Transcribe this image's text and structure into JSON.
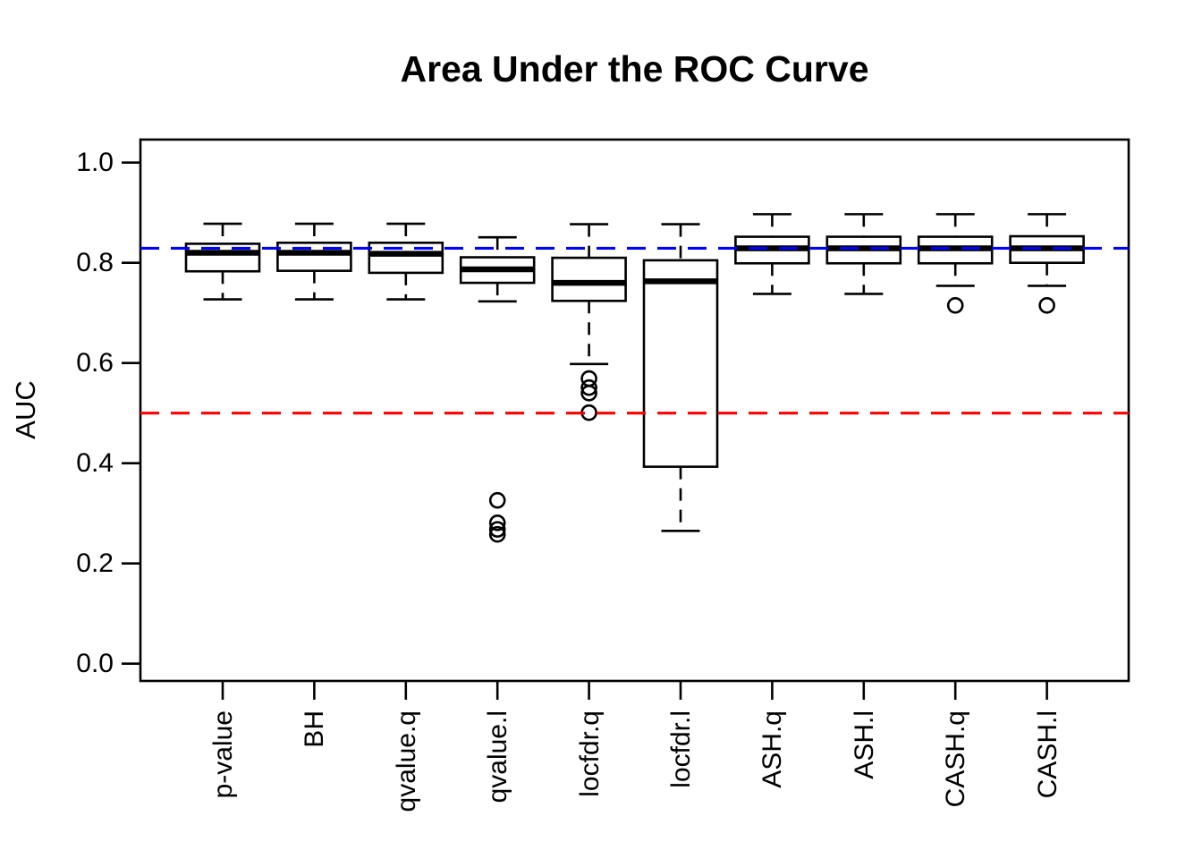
{
  "title": "Area Under the ROC Curve",
  "chart_data": {
    "type": "boxplot",
    "title": "Area Under the ROC Curve",
    "xlabel": "",
    "ylabel": "AUC",
    "ylim": [
      0.0,
      1.0
    ],
    "grid": false,
    "background": "#ffffff",
    "box_color": "#000000",
    "ytick_labels": [
      "1.0",
      "0.8",
      "0.6",
      "0.4",
      "0.2",
      "0.0"
    ],
    "yticks": [
      1.0,
      0.8,
      0.6,
      0.4,
      0.2,
      0.0
    ],
    "categories": [
      "p-value",
      "BH",
      "qvalue.q",
      "qvalue.l",
      "locfdr.q",
      "locfdr.l",
      "ASH.q",
      "ASH.l",
      "CASH.q",
      "CASH.l"
    ],
    "boxes": [
      {
        "label": "p-value",
        "whisker_low": 0.727,
        "q1": 0.783,
        "median": 0.82,
        "q3": 0.838,
        "whisker_high": 0.878,
        "outliers": []
      },
      {
        "label": "BH",
        "whisker_low": 0.727,
        "q1": 0.784,
        "median": 0.82,
        "q3": 0.84,
        "whisker_high": 0.878,
        "outliers": []
      },
      {
        "label": "qvalue.q",
        "whisker_low": 0.727,
        "q1": 0.78,
        "median": 0.818,
        "q3": 0.84,
        "whisker_high": 0.878,
        "outliers": []
      },
      {
        "label": "qvalue.l",
        "whisker_low": 0.723,
        "q1": 0.76,
        "median": 0.787,
        "q3": 0.811,
        "whisker_high": 0.851,
        "outliers": [
          0.326,
          0.281,
          0.268,
          0.258
        ]
      },
      {
        "label": "locfdr.q",
        "whisker_low": 0.598,
        "q1": 0.724,
        "median": 0.76,
        "q3": 0.81,
        "whisker_high": 0.877,
        "outliers": [
          0.569,
          0.551,
          0.54,
          0.501
        ]
      },
      {
        "label": "locfdr.l",
        "whisker_low": 0.265,
        "q1": 0.393,
        "median": 0.763,
        "q3": 0.805,
        "whisker_high": 0.877,
        "outliers": []
      },
      {
        "label": "ASH.q",
        "whisker_low": 0.738,
        "q1": 0.799,
        "median": 0.829,
        "q3": 0.852,
        "whisker_high": 0.897,
        "outliers": []
      },
      {
        "label": "ASH.l",
        "whisker_low": 0.738,
        "q1": 0.799,
        "median": 0.829,
        "q3": 0.852,
        "whisker_high": 0.897,
        "outliers": []
      },
      {
        "label": "CASH.q",
        "whisker_low": 0.754,
        "q1": 0.799,
        "median": 0.829,
        "q3": 0.852,
        "whisker_high": 0.897,
        "outliers": [
          0.715
        ]
      },
      {
        "label": "CASH.l",
        "whisker_low": 0.754,
        "q1": 0.8,
        "median": 0.829,
        "q3": 0.853,
        "whisker_high": 0.897,
        "outliers": [
          0.715
        ]
      }
    ],
    "reference_lines": [
      {
        "name": "upper-benchmark",
        "value": 0.829,
        "color": "#0000ff",
        "style": "dashed"
      },
      {
        "name": "chance-level",
        "value": 0.5,
        "color": "#ff0000",
        "style": "dashed"
      }
    ],
    "legend_position": "none"
  }
}
